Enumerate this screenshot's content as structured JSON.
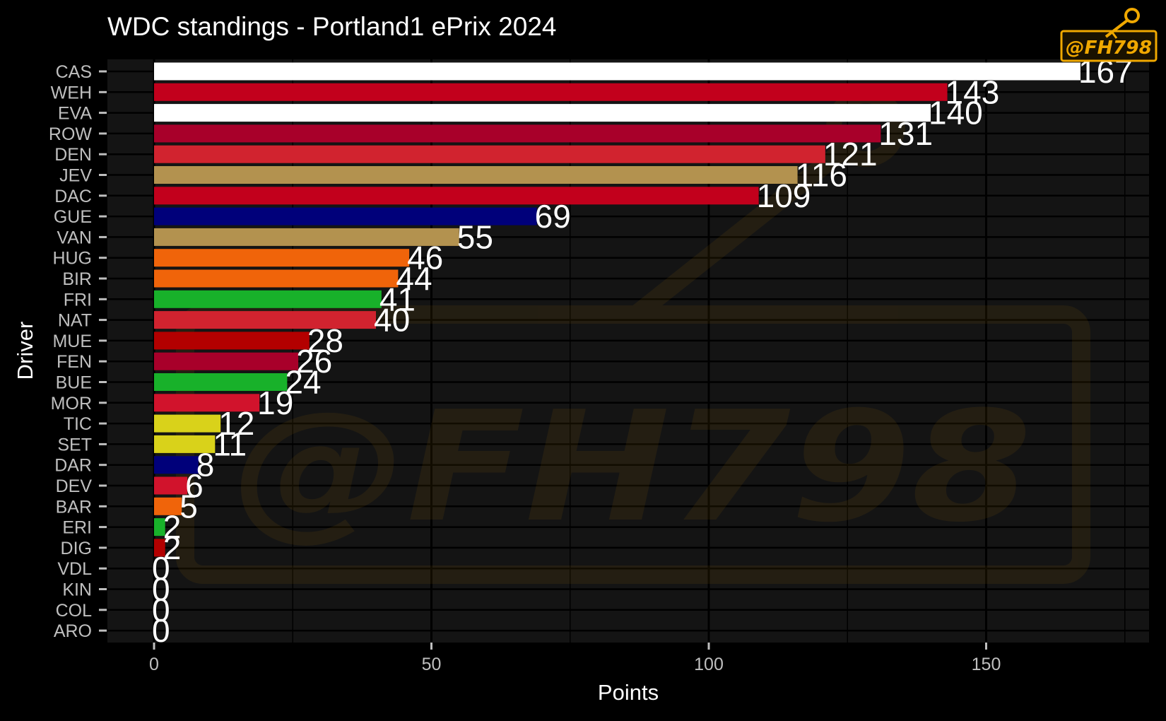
{
  "chart_data": {
    "type": "bar",
    "orientation": "horizontal",
    "title": "WDC standings - Portland1 ePrix 2024",
    "xlabel": "Points",
    "ylabel": "Driver",
    "xlim": [
      -8.5,
      180
    ],
    "x_ticks": [
      0,
      50,
      100,
      150
    ],
    "grid": true,
    "categories": [
      "CAS",
      "WEH",
      "EVA",
      "ROW",
      "DEN",
      "JEV",
      "DAC",
      "GUE",
      "VAN",
      "HUG",
      "BIR",
      "FRI",
      "NAT",
      "MUE",
      "FEN",
      "BUE",
      "MOR",
      "TIC",
      "SET",
      "DAR",
      "DEV",
      "BAR",
      "ERI",
      "DIG",
      "VDL",
      "KIN",
      "COL",
      "ARO"
    ],
    "values": [
      167,
      143,
      140,
      131,
      121,
      116,
      109,
      69,
      55,
      46,
      44,
      41,
      40,
      28,
      26,
      24,
      19,
      12,
      11,
      8,
      6,
      5,
      2,
      2,
      0,
      0,
      0,
      0
    ],
    "colors": [
      "#ffffff",
      "#c2001c",
      "#ffffff",
      "#a8002a",
      "#d1232f",
      "#b3924f",
      "#c2001c",
      "#00007a",
      "#b3924f",
      "#f0640a",
      "#f0640a",
      "#18b12a",
      "#d1232f",
      "#b30000",
      "#a8002a",
      "#18b12a",
      "#d1132c",
      "#d9d21a",
      "#d9d21a",
      "#00007a",
      "#d1132c",
      "#f0640a",
      "#18b12a",
      "#b30000",
      "#000000",
      "#000000",
      "#000000",
      "#000000"
    ]
  },
  "watermark": {
    "text": "@FH798",
    "icon": "key-icon"
  }
}
